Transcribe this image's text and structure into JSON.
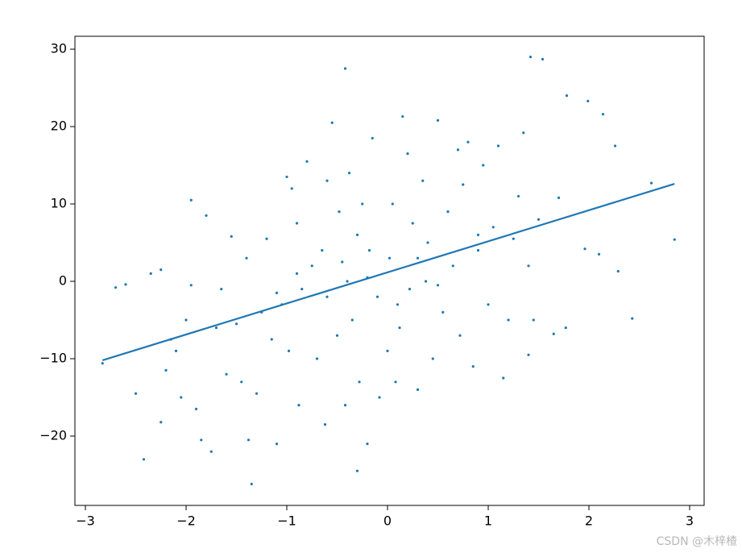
{
  "chart_data": {
    "type": "scatter",
    "xlim": [
      -3.104,
      3.144
    ],
    "ylim": [
      -28.96,
      31.67
    ],
    "xticks": [
      {
        "value": -3,
        "label": "−3"
      },
      {
        "value": -2,
        "label": "−2"
      },
      {
        "value": -1,
        "label": "−1"
      },
      0,
      1,
      2,
      3
    ],
    "yticks": [
      {
        "value": -20,
        "label": "−20"
      },
      {
        "value": -10,
        "label": "−10"
      },
      0,
      10,
      20,
      30
    ],
    "series": [
      {
        "type": "scatter",
        "color": "#1f77b4",
        "x": [
          -2.83,
          -2.7,
          -2.6,
          -2.5,
          -2.42,
          -2.35,
          -2.25,
          -2.25,
          -2.2,
          -2.15,
          -2.1,
          -2.05,
          -2.0,
          -1.95,
          -1.95,
          -1.9,
          -1.85,
          -1.8,
          -1.75,
          -1.7,
          -1.65,
          -1.6,
          -1.55,
          -1.5,
          -1.45,
          -1.4,
          -1.38,
          -1.35,
          -1.3,
          -1.25,
          -1.2,
          -1.15,
          -1.1,
          -1.05,
          -1.0,
          -0.98,
          -0.95,
          -0.9,
          -0.88,
          -0.85,
          -0.8,
          -0.75,
          -0.7,
          -0.65,
          -0.62,
          -0.6,
          -0.55,
          -0.5,
          -0.48,
          -0.45,
          -0.42,
          -0.38,
          -0.35,
          -0.3,
          -0.28,
          -0.25,
          -0.2,
          -0.18,
          -0.15,
          -0.1,
          -0.08,
          -0.42,
          0,
          0.02,
          0.05,
          0.08,
          -0.3,
          0.12,
          0.15,
          0.2,
          0.22,
          0.25,
          0.3,
          0.35,
          0.38,
          0.4,
          0.45,
          0.5,
          0.55,
          0.6,
          0.65,
          0.7,
          0.72,
          0.75,
          0.8,
          0.85,
          0.9,
          0.95,
          1.0,
          1.05,
          1.1,
          1.15,
          1.2,
          1.25,
          1.3,
          1.35,
          1.4,
          1.45,
          1.5,
          1.42,
          1.54,
          1.78,
          1.99,
          2.14,
          2.26,
          2.62,
          2.85,
          2.43,
          2.29,
          1.96,
          1.77,
          1.65,
          1.4,
          2.1,
          1.7,
          -0.6,
          -0.2,
          0.3,
          0.5,
          -0.9,
          -1.1,
          0.1,
          0.9,
          -0.4
        ],
        "values": [
          -10.6,
          -0.8,
          -0.4,
          -14.5,
          -23,
          1,
          1.5,
          -18.2,
          -11.5,
          -7.5,
          -9,
          -15,
          -5,
          10.5,
          -0.5,
          -16.5,
          -20.5,
          8.5,
          -22,
          -6,
          -1,
          -12,
          5.8,
          -5.5,
          -13,
          3,
          -20.5,
          -26.2,
          -14.5,
          -4,
          5.5,
          -7.5,
          -21,
          -3,
          13.5,
          -9,
          12,
          7.5,
          -16,
          -1,
          15.5,
          2,
          -10,
          4,
          -18.5,
          13,
          20.5,
          -7,
          9,
          2.5,
          -16,
          14,
          -5,
          6,
          -13,
          10,
          -21,
          4,
          18.5,
          -2,
          -15,
          27.5,
          -9,
          3,
          10,
          -13,
          -24.5,
          -6,
          21.3,
          16.5,
          -1,
          7.5,
          -14,
          13,
          0,
          5,
          -10,
          20.8,
          -4,
          9,
          2,
          17,
          -7,
          12.5,
          18,
          -11,
          4,
          15,
          -3,
          7,
          17.5,
          -12.5,
          -5,
          5.5,
          11,
          19.2,
          2,
          -5,
          8,
          29,
          28.7,
          24,
          23.3,
          21.6,
          17.5,
          12.7,
          5.4,
          -4.8,
          1.3,
          4.2,
          -6,
          -6.8,
          -9.5,
          3.5,
          10.8,
          -2,
          0.5,
          3,
          -0.5,
          1,
          -1.5,
          -3,
          6,
          0
        ]
      },
      {
        "type": "line",
        "color": "#1f77b4",
        "x": [
          -2.83,
          2.85
        ],
        "values": [
          -10.2,
          12.6
        ]
      }
    ],
    "watermark": "CSDN @木梓楂"
  }
}
